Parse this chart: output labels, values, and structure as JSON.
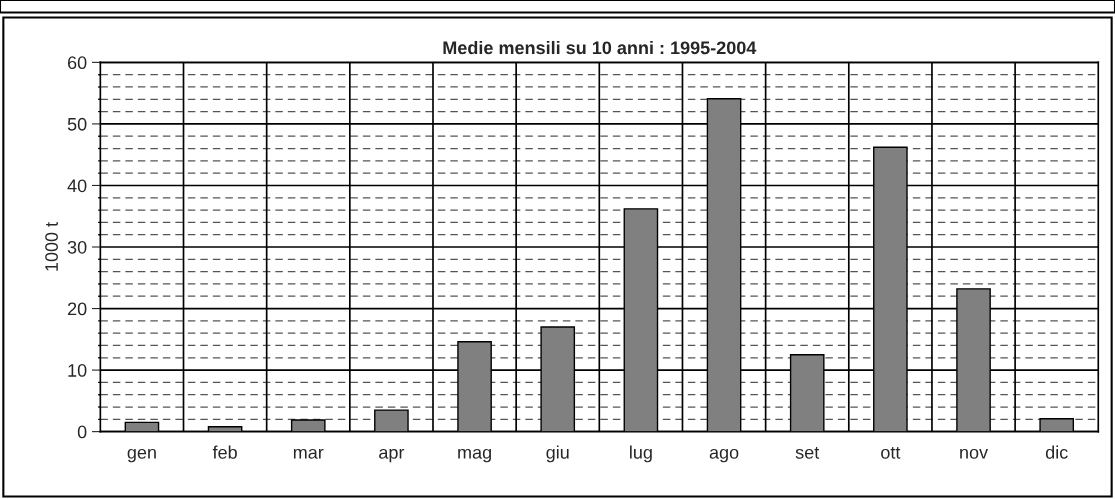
{
  "chart_data": {
    "type": "bar",
    "title": "Medie mensili su 10 anni : 1995-2004",
    "ylabel": "1000 t",
    "categories": [
      "gen",
      "feb",
      "mar",
      "apr",
      "mag",
      "giu",
      "lug",
      "ago",
      "set",
      "ott",
      "nov",
      "dic"
    ],
    "values": [
      1.5,
      0.8,
      1.9,
      3.5,
      14.6,
      17.0,
      36.2,
      54.1,
      12.5,
      46.2,
      23.2,
      2.1
    ],
    "color": "#808080",
    "ylim": [
      0,
      60
    ],
    "yticks": [
      0,
      10,
      20,
      30,
      40,
      50,
      60
    ],
    "grid": true,
    "legend": false
  }
}
